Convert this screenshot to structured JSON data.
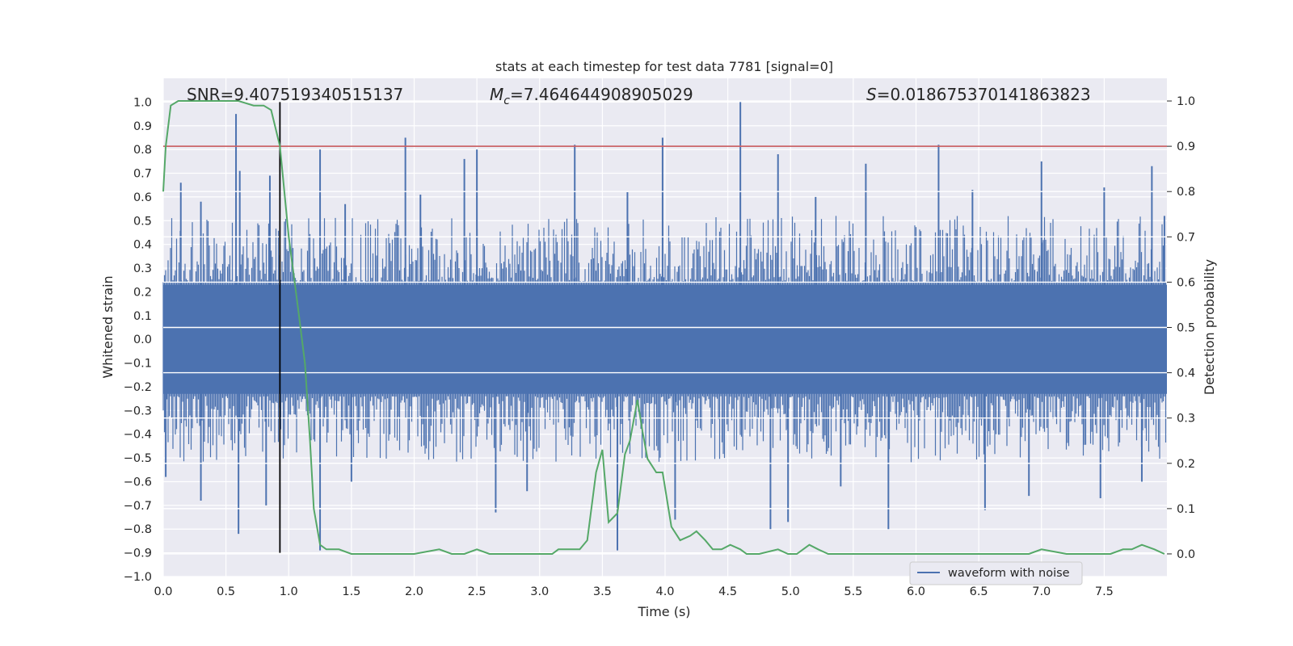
{
  "chart_data": {
    "type": "line",
    "title": "stats at each timestep for test data 7781 [signal=0]",
    "xlabel": "Time (s)",
    "ylabel": "Whitened strain",
    "y2label": "Detection probability",
    "xlim": [
      0.0,
      8.0
    ],
    "ylim": [
      -1.0,
      1.1
    ],
    "y2lim": [
      -0.05,
      1.05
    ],
    "x_ticks": [
      "0.0",
      "0.5",
      "1.0",
      "1.5",
      "2.0",
      "2.5",
      "3.0",
      "3.5",
      "4.0",
      "4.5",
      "5.0",
      "5.5",
      "6.0",
      "6.5",
      "7.0",
      "7.5"
    ],
    "y_ticks": [
      "-1.0",
      "-0.9",
      "-0.8",
      "-0.7",
      "-0.6",
      "-0.5",
      "-0.4",
      "-0.3",
      "-0.2",
      "-0.1",
      "0.0",
      "0.1",
      "0.2",
      "0.3",
      "0.4",
      "0.5",
      "0.6",
      "0.7",
      "0.8",
      "0.9",
      "1.0"
    ],
    "y2_ticks": [
      "0.0",
      "0.1",
      "0.2",
      "0.3",
      "0.4",
      "0.5",
      "0.6",
      "0.7",
      "0.8",
      "0.9",
      "1.0"
    ],
    "grid": true,
    "legend": {
      "position": "lower-right",
      "entries": [
        "waveform with noise"
      ]
    },
    "annotations": {
      "snr": "SNR=9.407519340515137",
      "mc_symbol": "M",
      "mc_sub": "c",
      "mc_value": "=7.464644908905029",
      "s_symbol": "S",
      "s_value": "=0.018675370141863823"
    },
    "threshold_line": {
      "axis": "y2",
      "value": 0.9,
      "color": "#c44e52"
    },
    "marker_line": {
      "x": 0.93,
      "y_from": -0.9,
      "y_to": 1.0,
      "color": "#000000"
    },
    "waveform": {
      "name": "waveform with noise",
      "color": "#4c72b0",
      "dense_band": [
        -0.23,
        0.23
      ],
      "spikes": [
        {
          "x": 0.58,
          "y": 0.95
        },
        {
          "x": 0.61,
          "y": 0.71
        },
        {
          "x": 0.14,
          "y": 0.66
        },
        {
          "x": 0.85,
          "y": 0.69
        },
        {
          "x": 1.25,
          "y": 0.8
        },
        {
          "x": 1.93,
          "y": 0.85
        },
        {
          "x": 2.4,
          "y": 0.76
        },
        {
          "x": 2.5,
          "y": 0.8
        },
        {
          "x": 3.28,
          "y": 0.82
        },
        {
          "x": 3.98,
          "y": 0.85
        },
        {
          "x": 4.6,
          "y": 1.0
        },
        {
          "x": 4.9,
          "y": 0.78
        },
        {
          "x": 5.6,
          "y": 0.74
        },
        {
          "x": 6.18,
          "y": 0.82
        },
        {
          "x": 7.0,
          "y": 0.75
        },
        {
          "x": 7.88,
          "y": 0.73
        },
        {
          "x": 0.3,
          "y": 0.58
        },
        {
          "x": 1.45,
          "y": 0.57
        },
        {
          "x": 2.05,
          "y": 0.61
        },
        {
          "x": 3.7,
          "y": 0.62
        },
        {
          "x": 5.2,
          "y": 0.6
        },
        {
          "x": 6.45,
          "y": 0.63
        },
        {
          "x": 7.5,
          "y": 0.64
        },
        {
          "x": 7.98,
          "y": 0.52
        },
        {
          "x": 0.6,
          "y": -0.82
        },
        {
          "x": 1.25,
          "y": -0.89
        },
        {
          "x": 0.3,
          "y": -0.68
        },
        {
          "x": 0.82,
          "y": -0.7
        },
        {
          "x": 2.65,
          "y": -0.73
        },
        {
          "x": 3.62,
          "y": -0.89
        },
        {
          "x": 4.08,
          "y": -0.76
        },
        {
          "x": 4.84,
          "y": -0.8
        },
        {
          "x": 4.98,
          "y": -0.77
        },
        {
          "x": 5.78,
          "y": -0.8
        },
        {
          "x": 6.55,
          "y": -0.72
        },
        {
          "x": 7.47,
          "y": -0.67
        },
        {
          "x": 0.02,
          "y": -0.58
        },
        {
          "x": 1.5,
          "y": -0.6
        },
        {
          "x": 2.9,
          "y": -0.64
        },
        {
          "x": 5.4,
          "y": -0.62
        },
        {
          "x": 6.9,
          "y": -0.66
        },
        {
          "x": 7.8,
          "y": -0.6
        }
      ]
    },
    "probability": {
      "color": "#55a868",
      "axis": "y2",
      "x": [
        0.0,
        0.02,
        0.06,
        0.12,
        0.2,
        0.4,
        0.6,
        0.72,
        0.8,
        0.86,
        0.93,
        1.0,
        1.08,
        1.13,
        1.17,
        1.2,
        1.25,
        1.3,
        1.4,
        1.5,
        1.7,
        1.9,
        2.0,
        2.2,
        2.3,
        2.4,
        2.5,
        2.6,
        2.8,
        3.0,
        3.1,
        3.15,
        3.25,
        3.32,
        3.38,
        3.45,
        3.5,
        3.55,
        3.62,
        3.68,
        3.72,
        3.78,
        3.82,
        3.86,
        3.93,
        3.98,
        4.05,
        4.12,
        4.2,
        4.25,
        4.32,
        4.38,
        4.45,
        4.52,
        4.6,
        4.65,
        4.75,
        4.9,
        4.98,
        5.05,
        5.1,
        5.15,
        5.22,
        5.3,
        5.5,
        5.7,
        5.9,
        6.1,
        6.3,
        6.5,
        6.8,
        6.9,
        7.0,
        7.2,
        7.4,
        7.55,
        7.65,
        7.72,
        7.8,
        7.9,
        7.98
      ],
      "y": [
        0.8,
        0.9,
        0.99,
        1.0,
        1.0,
        1.0,
        1.0,
        0.99,
        0.99,
        0.98,
        0.9,
        0.7,
        0.53,
        0.42,
        0.25,
        0.1,
        0.02,
        0.01,
        0.01,
        0.0,
        0.0,
        0.0,
        0.0,
        0.01,
        0.0,
        0.0,
        0.01,
        0.0,
        0.0,
        0.0,
        0.0,
        0.01,
        0.01,
        0.01,
        0.03,
        0.18,
        0.23,
        0.07,
        0.09,
        0.22,
        0.25,
        0.34,
        0.27,
        0.21,
        0.18,
        0.18,
        0.06,
        0.03,
        0.04,
        0.05,
        0.03,
        0.01,
        0.01,
        0.02,
        0.01,
        0.0,
        0.0,
        0.01,
        0.0,
        0.0,
        0.01,
        0.02,
        0.01,
        0.0,
        0.0,
        0.0,
        0.0,
        0.0,
        0.0,
        0.0,
        0.0,
        0.0,
        0.01,
        0.0,
        0.0,
        0.0,
        0.01,
        0.01,
        0.02,
        0.01,
        0.0
      ]
    }
  }
}
